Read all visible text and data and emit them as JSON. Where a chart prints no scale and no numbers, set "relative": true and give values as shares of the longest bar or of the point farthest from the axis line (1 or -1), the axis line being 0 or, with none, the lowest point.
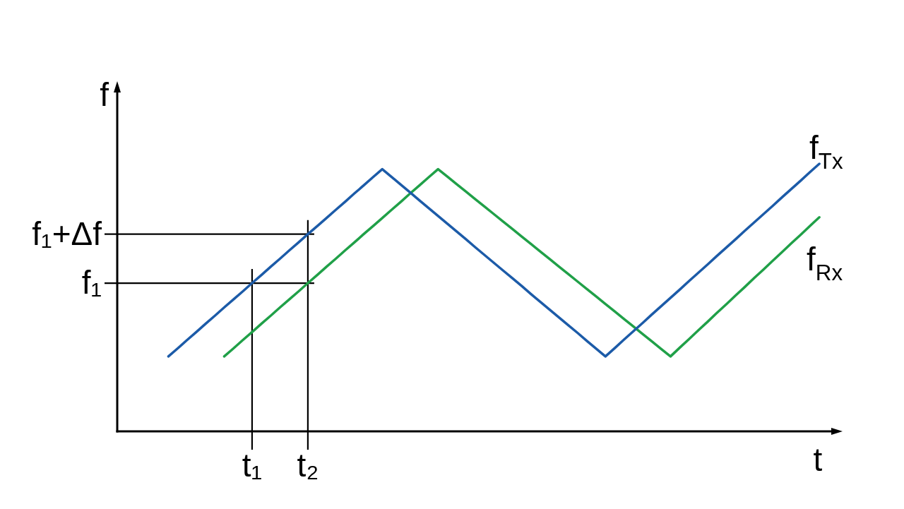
{
  "chart_data": {
    "type": "line",
    "relative": true,
    "xlabel": "t",
    "ylabel": "f",
    "categories": [
      null,
      null,
      null,
      null,
      null,
      null,
      null,
      null,
      null,
      null,
      null,
      null,
      null,
      null,
      "t₁",
      null,
      null,
      null,
      null,
      null,
      "t₂",
      null,
      null,
      null,
      null,
      null,
      null,
      null,
      null,
      null,
      null,
      null,
      null,
      null,
      null,
      null,
      null,
      null,
      null,
      null,
      null,
      null,
      null,
      null,
      null,
      null,
      null,
      null,
      null,
      null,
      null,
      null,
      null,
      null,
      null,
      null,
      null,
      null,
      null,
      null,
      null,
      null,
      null,
      null,
      null,
      null,
      null,
      null,
      null,
      null,
      null,
      null,
      null,
      null,
      null,
      null,
      null,
      null
    ],
    "series": [
      {
        "name": "f$_{Tx}$",
        "color": "#1c5ba8",
        "values": [
          null,
          null,
          null,
          null,
          null,
          0.28,
          0.31,
          0.341,
          0.371,
          0.402,
          0.432,
          0.463,
          0.493,
          0.523,
          0.554,
          0.584,
          0.615,
          0.645,
          0.676,
          0.706,
          0.737,
          0.767,
          0.797,
          0.828,
          0.858,
          0.889,
          0.919,
          0.95,
          0.98,
          0.951,
          0.922,
          0.893,
          0.863,
          0.834,
          0.805,
          0.776,
          0.747,
          0.718,
          0.688,
          0.659,
          0.63,
          0.601,
          0.572,
          0.543,
          0.513,
          0.484,
          0.455,
          0.426,
          0.397,
          0.368,
          0.338,
          0.309,
          0.28,
          0.311,
          0.343,
          0.374,
          0.405,
          0.437,
          0.468,
          0.499,
          0.53,
          0.562,
          0.593,
          0.624,
          0.656,
          0.687,
          0.718,
          0.75,
          0.781,
          0.812,
          0.843,
          0.875,
          0.906,
          0.937,
          0.969,
          1,
          null,
          null
        ]
      },
      {
        "name": "f$_{Rx}$",
        "color": "#20a048",
        "values": [
          null,
          null,
          null,
          null,
          null,
          null,
          null,
          null,
          null,
          null,
          null,
          0.28,
          0.31,
          0.341,
          0.371,
          0.402,
          0.432,
          0.463,
          0.493,
          0.523,
          0.554,
          0.584,
          0.615,
          0.645,
          0.676,
          0.706,
          0.737,
          0.767,
          0.797,
          0.828,
          0.858,
          0.889,
          0.919,
          0.95,
          0.98,
          0.952,
          0.924,
          0.896,
          0.868,
          0.84,
          0.812,
          0.784,
          0.756,
          0.728,
          0.7,
          0.672,
          0.644,
          0.616,
          0.588,
          0.56,
          0.532,
          0.504,
          0.476,
          0.448,
          0.42,
          0.392,
          0.364,
          0.336,
          0.308,
          0.28,
          0.313,
          0.345,
          0.378,
          0.41,
          0.443,
          0.475,
          0.508,
          0.54,
          0.573,
          0.605,
          0.638,
          0.67,
          0.703,
          0.735,
          0.768,
          0.8,
          null,
          null
        ]
      }
    ],
    "ref_lines": [
      {
        "axis": "y",
        "value": 0.737,
        "label": "f₁+Δf"
      },
      {
        "axis": "y",
        "value": 0.554,
        "label": "f₁"
      },
      {
        "axis": "x",
        "value": "t₁"
      },
      {
        "axis": "x",
        "value": "t₂"
      }
    ]
  }
}
